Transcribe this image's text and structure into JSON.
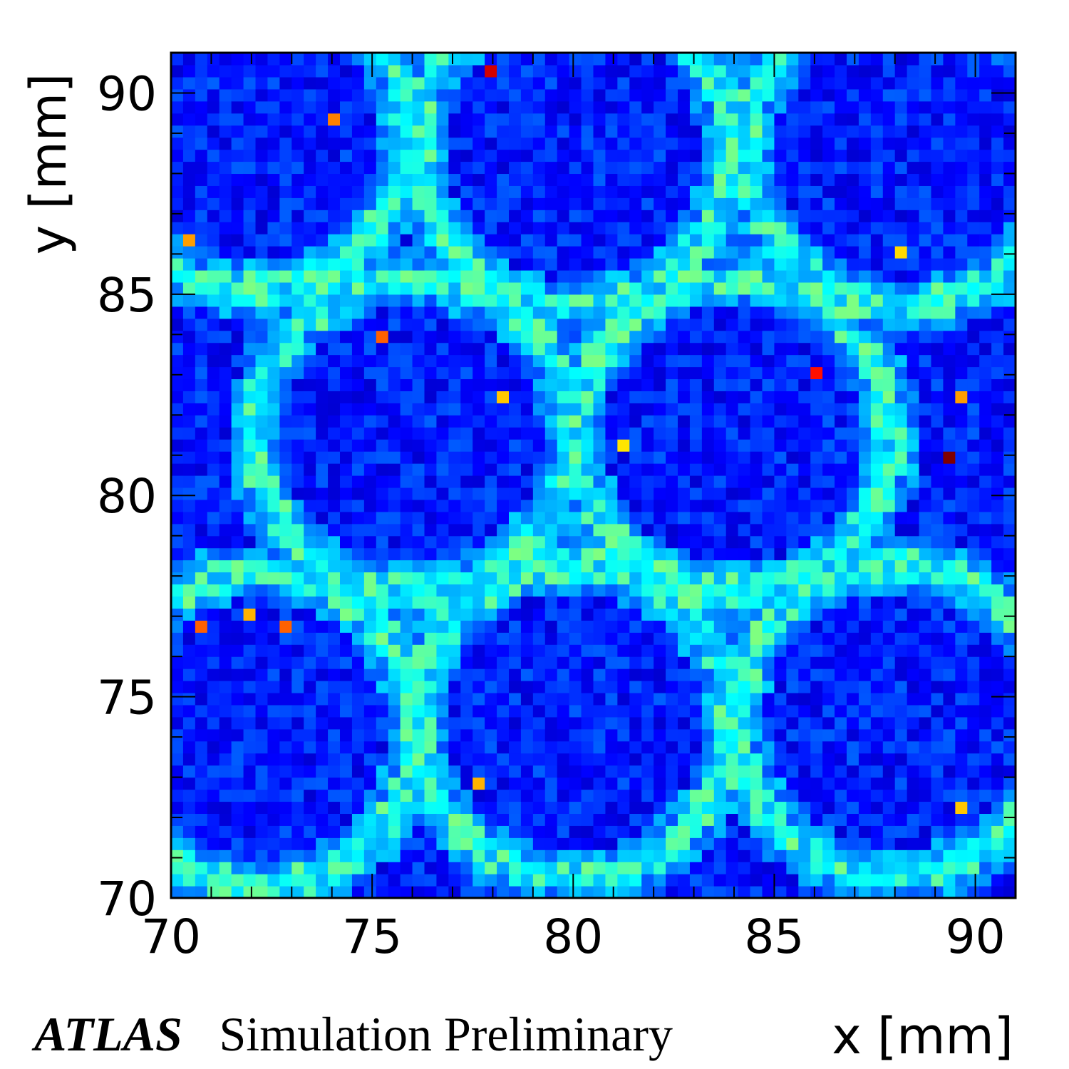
{
  "chart_data": {
    "type": "heatmap",
    "title": "",
    "xlabel": "x [mm]",
    "ylabel": "y [mm]",
    "xlim": [
      70,
      91
    ],
    "ylim": [
      70,
      91
    ],
    "xticks": [
      "70",
      "75",
      "80",
      "85",
      "90"
    ],
    "yticks": [
      "70",
      "75",
      "80",
      "85",
      "90"
    ],
    "bin_width": 0.3,
    "colormap": "jet",
    "grid": false,
    "pattern": {
      "description_free": true,
      "ring_centers": [
        [
          72.0,
          89.0
        ],
        [
          80.0,
          88.6
        ],
        [
          88.2,
          88.6
        ],
        [
          76.0,
          81.5
        ],
        [
          84.0,
          81.5
        ],
        [
          72.2,
          74.2
        ],
        [
          80.0,
          74.4
        ],
        [
          88.0,
          74.4
        ]
      ],
      "ring_radius": 3.9
    },
    "hot_bins": [
      {
        "x": 77.9,
        "y": 90.5,
        "level": 0.92
      },
      {
        "x": 74.0,
        "y": 89.3,
        "level": 0.75
      },
      {
        "x": 70.4,
        "y": 86.3,
        "level": 0.72
      },
      {
        "x": 75.2,
        "y": 83.9,
        "level": 0.78
      },
      {
        "x": 78.2,
        "y": 82.5,
        "level": 0.68
      },
      {
        "x": 86.0,
        "y": 83.0,
        "level": 0.86
      },
      {
        "x": 89.6,
        "y": 82.5,
        "level": 0.72
      },
      {
        "x": 89.3,
        "y": 81.0,
        "level": 1.0
      },
      {
        "x": 81.2,
        "y": 81.3,
        "level": 0.65
      },
      {
        "x": 70.7,
        "y": 76.7,
        "level": 0.78
      },
      {
        "x": 72.0,
        "y": 77.0,
        "level": 0.7
      },
      {
        "x": 72.8,
        "y": 76.7,
        "level": 0.78
      },
      {
        "x": 77.6,
        "y": 72.8,
        "level": 0.7
      },
      {
        "x": 89.6,
        "y": 72.2,
        "level": 0.68
      },
      {
        "x": 88.1,
        "y": 86.0,
        "level": 0.66
      }
    ]
  },
  "footer": {
    "brand": "ATLAS",
    "subtitle": "Simulation Preliminary"
  },
  "colors": {
    "background_low": "#0000c8",
    "frame": "#000000"
  }
}
